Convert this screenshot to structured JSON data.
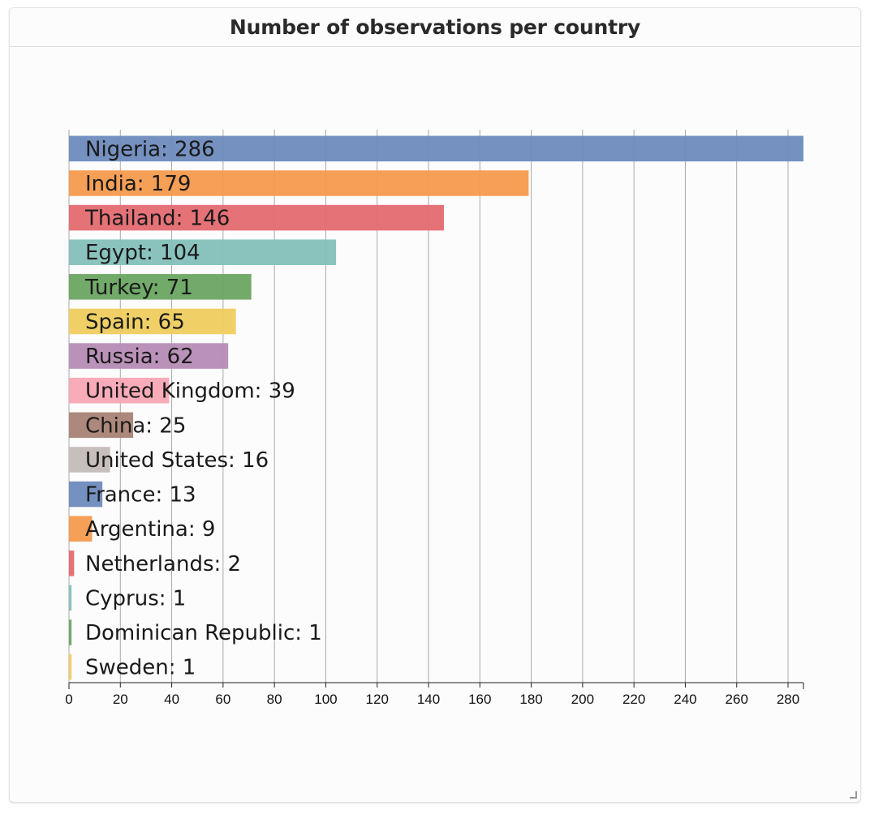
{
  "panel": {
    "title": "Number of observations per country"
  },
  "chart_data": {
    "type": "bar",
    "orientation": "horizontal",
    "title": "Number of observations per country",
    "xlabel": "",
    "ylabel": "",
    "xlim": [
      0,
      286
    ],
    "xticks": [
      0,
      20,
      40,
      60,
      80,
      100,
      120,
      140,
      160,
      180,
      200,
      220,
      240,
      260,
      280
    ],
    "grid": true,
    "label_format": "{category}: {value}",
    "categories": [
      "Nigeria",
      "India",
      "Thailand",
      "Egypt",
      "Turkey",
      "Spain",
      "Russia",
      "United Kingdom",
      "China",
      "United States",
      "France",
      "Argentina",
      "Netherlands",
      "Cyprus",
      "Dominican Republic",
      "Sweden"
    ],
    "values": [
      286,
      179,
      146,
      104,
      71,
      65,
      62,
      39,
      25,
      16,
      13,
      9,
      2,
      1,
      1,
      1
    ],
    "labels": [
      "Nigeria: 286",
      "India: 179",
      "Thailand: 146",
      "Egypt: 104",
      "Turkey: 71",
      "Spain: 65",
      "Russia: 62",
      "United Kingdom: 39",
      "China: 25",
      "United States: 16",
      "France: 13",
      "Argentina: 9",
      "Netherlands: 2",
      "Cyprus: 1",
      "Dominican Republic: 1",
      "Sweden: 1"
    ],
    "colors": [
      "#6d8bbd",
      "#f59a4d",
      "#e46a70",
      "#84c0bb",
      "#6aa562",
      "#efcd5e",
      "#b68cb5",
      "#f8a7b4",
      "#a88375",
      "#c4bcb7",
      "#6d8bbd",
      "#f59a4d",
      "#e46a70",
      "#84c0bb",
      "#6aa562",
      "#efcd5e"
    ]
  }
}
